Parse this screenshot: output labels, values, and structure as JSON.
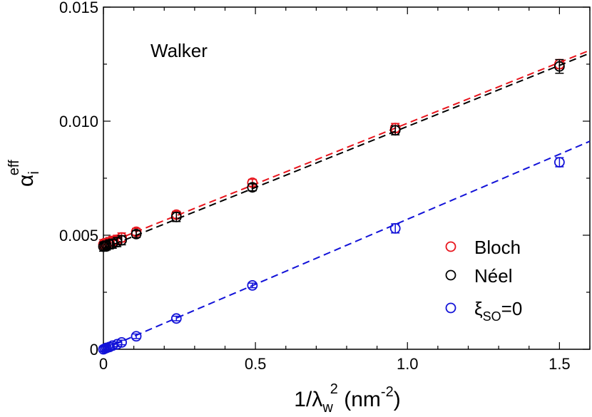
{
  "chart_data": {
    "type": "scatter",
    "title": "",
    "annotation": "Walker",
    "xlabel": "1/λw² (nm⁻²)",
    "ylabel": "αieff",
    "xlim": [
      0,
      1.6
    ],
    "ylim": [
      0,
      0.015
    ],
    "xticks": [
      0,
      0.5,
      1.0,
      1.5
    ],
    "xtick_labels": [
      "0",
      "0.5",
      "1.0",
      "1.5"
    ],
    "yticks": [
      0,
      0.005,
      0.01,
      0.015
    ],
    "ytick_labels": [
      "0",
      "0.005",
      "0.010",
      "0.015"
    ],
    "grid": false,
    "legend_position": "bottom-right",
    "series": [
      {
        "name": "Bloch",
        "color": "#e8141c",
        "x": [
          0.0,
          0.005,
          0.01,
          0.02,
          0.03,
          0.045,
          0.06,
          0.108,
          0.24,
          0.49,
          0.96,
          1.5
        ],
        "y": [
          0.0046,
          0.00462,
          0.00465,
          0.0047,
          0.00475,
          0.0048,
          0.0049,
          0.00515,
          0.0059,
          0.0073,
          0.0097,
          0.0125
        ],
        "err": [
          0.0002,
          0.0002,
          0.0002,
          0.0002,
          0.0002,
          0.0002,
          0.0002,
          0.00015,
          0.00015,
          0.00015,
          0.0002,
          0.0002
        ],
        "fit": {
          "slope": 0.00533,
          "intercept": 0.00458
        }
      },
      {
        "name": "Néel",
        "color": "#000000",
        "x": [
          0.0,
          0.005,
          0.01,
          0.02,
          0.03,
          0.045,
          0.06,
          0.108,
          0.24,
          0.49,
          0.96,
          1.5
        ],
        "y": [
          0.0045,
          0.00452,
          0.00455,
          0.0046,
          0.00463,
          0.0047,
          0.00478,
          0.00505,
          0.0058,
          0.0071,
          0.0096,
          0.0124
        ],
        "err": [
          0.0002,
          0.0002,
          0.0002,
          0.0002,
          0.0002,
          0.0002,
          0.0002,
          0.00015,
          0.0002,
          0.00015,
          0.0002,
          0.0003
        ],
        "fit": {
          "slope": 0.00535,
          "intercept": 0.00442
        }
      },
      {
        "name": "ξSO=0",
        "color": "#1212d8",
        "x": [
          0.0,
          0.005,
          0.01,
          0.02,
          0.03,
          0.045,
          0.06,
          0.108,
          0.24,
          0.49,
          0.96,
          1.5
        ],
        "y": [
          0.0,
          3e-05,
          6e-05,
          0.0001,
          0.00016,
          0.00022,
          0.0003,
          0.00057,
          0.00135,
          0.0028,
          0.0053,
          0.0082
        ],
        "err": [
          0.0001,
          0.0001,
          0.0001,
          0.0001,
          0.0001,
          0.0001,
          0.0001,
          0.0001,
          0.0001,
          0.0001,
          0.0002,
          0.0002
        ],
        "fit": {
          "slope": 0.0057,
          "intercept": 0.0
        }
      }
    ]
  }
}
